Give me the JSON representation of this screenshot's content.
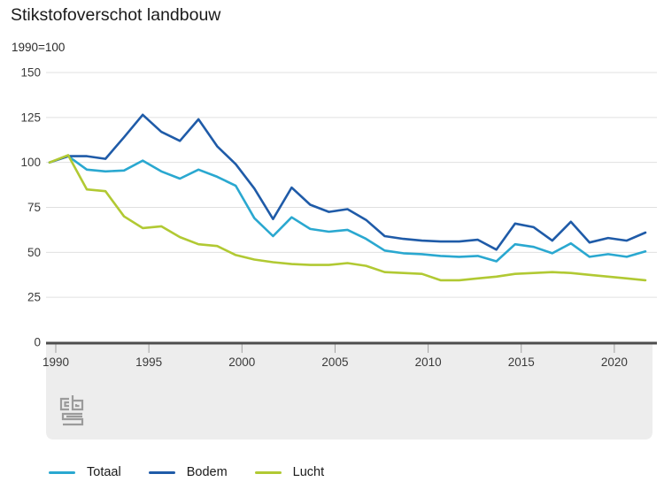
{
  "header": {
    "title": "Stikstofoverschot landbouw",
    "subtitle": "1990=100"
  },
  "legend": {
    "items": [
      {
        "label": "Totaal",
        "color": "#2aa8d0"
      },
      {
        "label": "Bodem",
        "color": "#1f5ba8"
      },
      {
        "label": "Lucht",
        "color": "#b1c933"
      }
    ]
  },
  "icons": {
    "logo": "cbs-logo"
  },
  "colors": {
    "grid": "#e0e0e0",
    "axis": "#4d4d4d",
    "band": "#ededed",
    "tick": "#a0a0a0",
    "label": "#3a3a3a",
    "logo": "#9b9b9b",
    "totaal": "#2aa8d0",
    "bodem": "#1f5ba8",
    "lucht": "#b1c933"
  },
  "chart_data": {
    "type": "line",
    "title": "Stikstofoverschot landbouw",
    "subtitle": "1990=100",
    "xlabel": "",
    "ylabel": "",
    "ylim": [
      0,
      150
    ],
    "y_ticks": [
      0,
      25,
      50,
      75,
      100,
      125,
      150
    ],
    "x_ticks": [
      1990,
      1995,
      2000,
      2005,
      2010,
      2015,
      2020
    ],
    "grid": true,
    "legend_position": "bottom",
    "x": [
      1990,
      1991,
      1992,
      1993,
      1994,
      1995,
      1996,
      1997,
      1998,
      1999,
      2000,
      2001,
      2002,
      2003,
      2004,
      2005,
      2006,
      2007,
      2008,
      2009,
      2010,
      2011,
      2012,
      2013,
      2014,
      2015,
      2016,
      2017,
      2018,
      2019,
      2020,
      2021,
      2022
    ],
    "series": [
      {
        "name": "Totaal",
        "color": "#2aa8d0",
        "values": [
          100,
          103.5,
          96,
          95,
          95.5,
          101,
          95,
          91,
          96,
          92,
          87,
          69,
          59,
          69.5,
          63,
          61.5,
          62.5,
          57.5,
          51,
          49.5,
          49,
          48,
          47.5,
          48,
          45,
          54.5,
          53,
          49.5,
          55,
          47.5,
          49,
          47.5,
          50.5
        ]
      },
      {
        "name": "Bodem",
        "color": "#1f5ba8",
        "values": [
          100,
          103.5,
          103.5,
          102,
          114,
          126.5,
          117,
          112,
          124,
          109,
          99,
          85.5,
          68.5,
          86,
          76.5,
          72.5,
          74,
          68,
          59,
          57.5,
          56.5,
          56,
          56,
          57,
          51.5,
          66,
          64,
          56.5,
          67,
          55.5,
          58,
          56.5,
          61
        ]
      },
      {
        "name": "Lucht",
        "color": "#b1c933",
        "values": [
          100,
          104,
          85,
          84,
          70,
          63.5,
          64.5,
          58.5,
          54.5,
          53.5,
          48.5,
          46,
          44.5,
          43.5,
          43,
          43,
          44,
          42.5,
          39,
          38.5,
          38,
          34.5,
          34.5,
          35.5,
          36.5,
          38,
          38.5,
          39,
          38.5,
          37.5,
          36.5,
          35.5,
          34.5
        ]
      }
    ]
  }
}
